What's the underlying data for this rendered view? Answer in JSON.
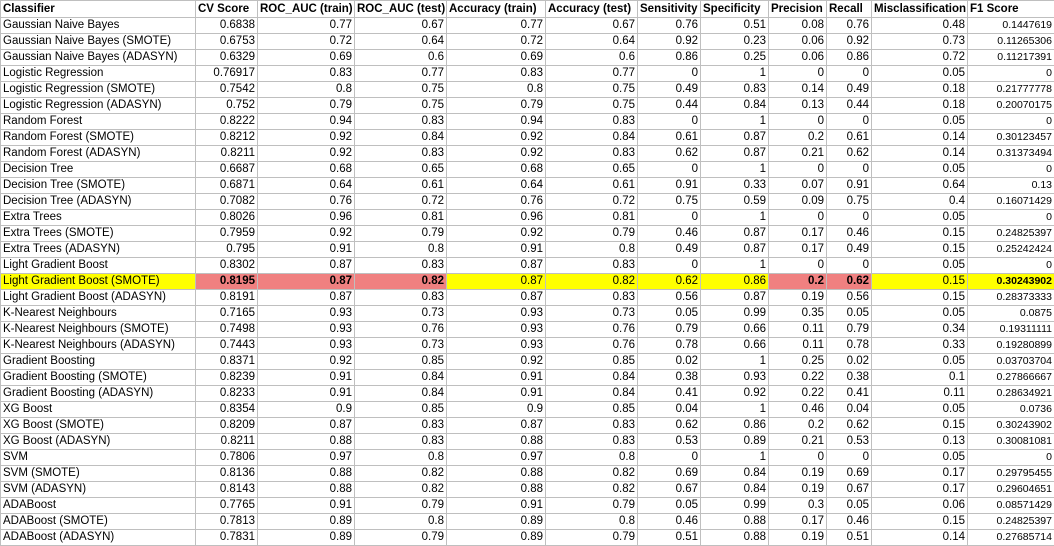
{
  "columns": [
    "Classifier",
    "CV Score",
    "ROC_AUC (train)",
    "ROC_AUC (test)",
    "Accuracy (train)",
    "Accuracy (test)",
    "Sensitivity",
    "Specificity",
    "Precision",
    "Recall",
    "Misclassification",
    "F1 Score"
  ],
  "highlight": {
    "row_index": 16,
    "row_color": "#ffff00",
    "best_cell_color": "#f08080",
    "best_columns": [
      1,
      2,
      3,
      8,
      9
    ]
  },
  "rows": [
    [
      "Gaussian Naive Bayes",
      "0.6838",
      "0.77",
      "0.67",
      "0.77",
      "0.67",
      "0.76",
      "0.51",
      "0.08",
      "0.76",
      "0.48",
      "0.1447619"
    ],
    [
      "Gaussian Naive Bayes (SMOTE)",
      "0.6753",
      "0.72",
      "0.64",
      "0.72",
      "0.64",
      "0.92",
      "0.23",
      "0.06",
      "0.92",
      "0.73",
      "0.11265306"
    ],
    [
      "Gaussian Naive Bayes (ADASYN)",
      "0.6329",
      "0.69",
      "0.6",
      "0.69",
      "0.6",
      "0.86",
      "0.25",
      "0.06",
      "0.86",
      "0.72",
      "0.11217391"
    ],
    [
      "Logistic Regression",
      "0.76917",
      "0.83",
      "0.77",
      "0.83",
      "0.77",
      "0",
      "1",
      "0",
      "0",
      "0.05",
      "0"
    ],
    [
      "Logistic Regression (SMOTE)",
      "0.7542",
      "0.8",
      "0.75",
      "0.8",
      "0.75",
      "0.49",
      "0.83",
      "0.14",
      "0.49",
      "0.18",
      "0.21777778"
    ],
    [
      "Logistic Regression (ADASYN)",
      "0.752",
      "0.79",
      "0.75",
      "0.79",
      "0.75",
      "0.44",
      "0.84",
      "0.13",
      "0.44",
      "0.18",
      "0.20070175"
    ],
    [
      "Random Forest",
      "0.8222",
      "0.94",
      "0.83",
      "0.94",
      "0.83",
      "0",
      "1",
      "0",
      "0",
      "0.05",
      "0"
    ],
    [
      "Random Forest (SMOTE)",
      "0.8212",
      "0.92",
      "0.84",
      "0.92",
      "0.84",
      "0.61",
      "0.87",
      "0.2",
      "0.61",
      "0.14",
      "0.30123457"
    ],
    [
      "Random Forest (ADASYN)",
      "0.8211",
      "0.92",
      "0.83",
      "0.92",
      "0.83",
      "0.62",
      "0.87",
      "0.21",
      "0.62",
      "0.14",
      "0.31373494"
    ],
    [
      "Decision Tree",
      "0.6687",
      "0.68",
      "0.65",
      "0.68",
      "0.65",
      "0",
      "1",
      "0",
      "0",
      "0.05",
      "0"
    ],
    [
      "Decision Tree (SMOTE)",
      "0.6871",
      "0.64",
      "0.61",
      "0.64",
      "0.61",
      "0.91",
      "0.33",
      "0.07",
      "0.91",
      "0.64",
      "0.13"
    ],
    [
      "Decision Tree (ADASYN)",
      "0.7082",
      "0.76",
      "0.72",
      "0.76",
      "0.72",
      "0.75",
      "0.59",
      "0.09",
      "0.75",
      "0.4",
      "0.16071429"
    ],
    [
      "Extra Trees",
      "0.8026",
      "0.96",
      "0.81",
      "0.96",
      "0.81",
      "0",
      "1",
      "0",
      "0",
      "0.05",
      "0"
    ],
    [
      "Extra Trees (SMOTE)",
      "0.7959",
      "0.92",
      "0.79",
      "0.92",
      "0.79",
      "0.46",
      "0.87",
      "0.17",
      "0.46",
      "0.15",
      "0.24825397"
    ],
    [
      "Extra Trees (ADASYN)",
      "0.795",
      "0.91",
      "0.8",
      "0.91",
      "0.8",
      "0.49",
      "0.87",
      "0.17",
      "0.49",
      "0.15",
      "0.25242424"
    ],
    [
      "Light Gradient Boost",
      "0.8302",
      "0.87",
      "0.83",
      "0.87",
      "0.83",
      "0",
      "1",
      "0",
      "0",
      "0.05",
      "0"
    ],
    [
      "Light Gradient Boost (SMOTE)",
      "0.8195",
      "0.87",
      "0.82",
      "0.87",
      "0.82",
      "0.62",
      "0.86",
      "0.2",
      "0.62",
      "0.15",
      "0.30243902"
    ],
    [
      "Light Gradient Boost (ADASYN)",
      "0.8191",
      "0.87",
      "0.83",
      "0.87",
      "0.83",
      "0.56",
      "0.87",
      "0.19",
      "0.56",
      "0.15",
      "0.28373333"
    ],
    [
      "K-Nearest Neighbours",
      "0.7165",
      "0.93",
      "0.73",
      "0.93",
      "0.73",
      "0.05",
      "0.99",
      "0.35",
      "0.05",
      "0.05",
      "0.0875"
    ],
    [
      "K-Nearest Neighbours (SMOTE)",
      "0.7498",
      "0.93",
      "0.76",
      "0.93",
      "0.76",
      "0.79",
      "0.66",
      "0.11",
      "0.79",
      "0.34",
      "0.19311111"
    ],
    [
      "K-Nearest Neighbours (ADASYN)",
      "0.7443",
      "0.93",
      "0.73",
      "0.93",
      "0.76",
      "0.78",
      "0.66",
      "0.11",
      "0.78",
      "0.33",
      "0.19280899"
    ],
    [
      "Gradient Boosting",
      "0.8371",
      "0.92",
      "0.85",
      "0.92",
      "0.85",
      "0.02",
      "1",
      "0.25",
      "0.02",
      "0.05",
      "0.03703704"
    ],
    [
      "Gradient Boosting (SMOTE)",
      "0.8239",
      "0.91",
      "0.84",
      "0.91",
      "0.84",
      "0.38",
      "0.93",
      "0.22",
      "0.38",
      "0.1",
      "0.27866667"
    ],
    [
      "Gradient Boosting (ADASYN)",
      "0.8233",
      "0.91",
      "0.84",
      "0.91",
      "0.84",
      "0.41",
      "0.92",
      "0.22",
      "0.41",
      "0.11",
      "0.28634921"
    ],
    [
      "XG Boost",
      "0.8354",
      "0.9",
      "0.85",
      "0.9",
      "0.85",
      "0.04",
      "1",
      "0.46",
      "0.04",
      "0.05",
      "0.0736"
    ],
    [
      "XG Boost (SMOTE)",
      "0.8209",
      "0.87",
      "0.83",
      "0.87",
      "0.83",
      "0.62",
      "0.86",
      "0.2",
      "0.62",
      "0.15",
      "0.30243902"
    ],
    [
      "XG Boost (ADASYN)",
      "0.8211",
      "0.88",
      "0.83",
      "0.88",
      "0.83",
      "0.53",
      "0.89",
      "0.21",
      "0.53",
      "0.13",
      "0.30081081"
    ],
    [
      "SVM",
      "0.7806",
      "0.97",
      "0.8",
      "0.97",
      "0.8",
      "0",
      "1",
      "0",
      "0",
      "0.05",
      "0"
    ],
    [
      "SVM (SMOTE)",
      "0.8136",
      "0.88",
      "0.82",
      "0.88",
      "0.82",
      "0.69",
      "0.84",
      "0.19",
      "0.69",
      "0.17",
      "0.29795455"
    ],
    [
      "SVM (ADASYN)",
      "0.8143",
      "0.88",
      "0.82",
      "0.88",
      "0.82",
      "0.67",
      "0.84",
      "0.19",
      "0.67",
      "0.17",
      "0.29604651"
    ],
    [
      "ADABoost",
      "0.7765",
      "0.91",
      "0.79",
      "0.91",
      "0.79",
      "0.05",
      "0.99",
      "0.3",
      "0.05",
      "0.06",
      "0.08571429"
    ],
    [
      "ADABoost (SMOTE)",
      "0.7813",
      "0.89",
      "0.8",
      "0.89",
      "0.8",
      "0.46",
      "0.88",
      "0.17",
      "0.46",
      "0.15",
      "0.24825397"
    ],
    [
      "ADABoost (ADASYN)",
      "0.7831",
      "0.89",
      "0.79",
      "0.89",
      "0.79",
      "0.51",
      "0.88",
      "0.19",
      "0.51",
      "0.14",
      "0.27685714"
    ]
  ]
}
